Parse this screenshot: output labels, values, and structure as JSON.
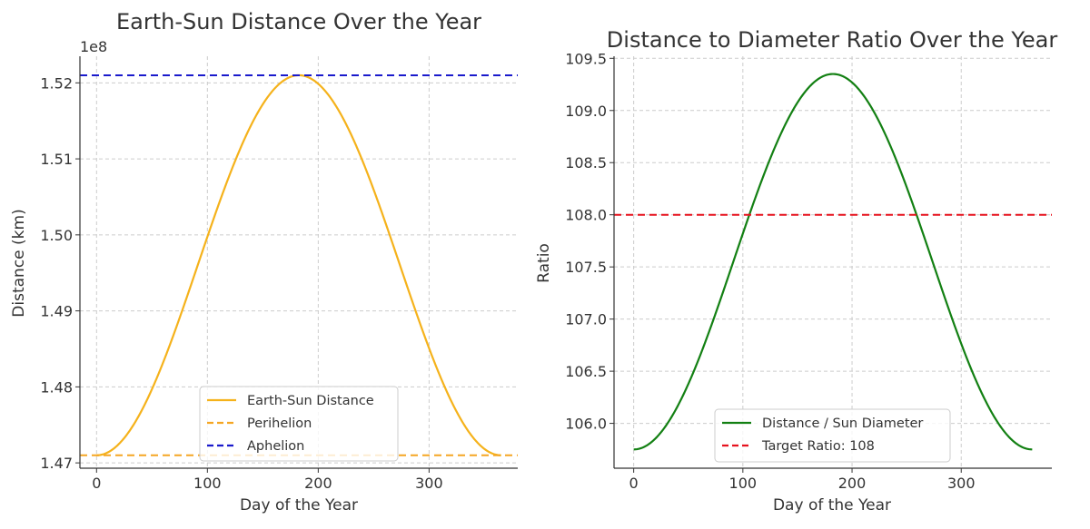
{
  "chart_data": [
    {
      "type": "line",
      "title": "Earth-Sun Distance Over the Year",
      "xlabel": "Day of the Year",
      "ylabel": "Distance (km)",
      "offset_label": "1e8",
      "xlim": [
        -15,
        380
      ],
      "ylim": [
        1.4693,
        1.5235
      ],
      "x_ticks": [
        0,
        100,
        200,
        300
      ],
      "x_tick_labels": [
        "0",
        "100",
        "200",
        "300"
      ],
      "y_ticks": [
        1.47,
        1.48,
        1.49,
        1.5,
        1.51,
        1.52
      ],
      "y_tick_labels": [
        "1.47",
        "1.48",
        "1.49",
        "1.50",
        "1.51",
        "1.52"
      ],
      "grid": true,
      "legend_position": "lower center",
      "series": [
        {
          "name": "Earth-Sun Distance",
          "kind": "cosine",
          "x_range": [
            0,
            365
          ],
          "min_value": 1.471,
          "max_value": 1.521,
          "min_day": 0,
          "color": "#f5b21b",
          "style": "solid"
        },
        {
          "name": "Perihelion",
          "kind": "hline",
          "y": 1.471,
          "color": "#f5a623",
          "style": "dashed"
        },
        {
          "name": "Aphelion",
          "kind": "hline",
          "y": 1.521,
          "color": "#1a1acc",
          "style": "dashed"
        }
      ]
    },
    {
      "type": "line",
      "title": "Distance to Diameter Ratio Over the Year",
      "xlabel": "Day of the Year",
      "ylabel": "Ratio",
      "offset_label": "",
      "xlim": [
        -18,
        383
      ],
      "ylim": [
        105.57,
        109.52
      ],
      "x_ticks": [
        0,
        100,
        200,
        300
      ],
      "x_tick_labels": [
        "0",
        "100",
        "200",
        "300"
      ],
      "y_ticks": [
        106.0,
        106.5,
        107.0,
        107.5,
        108.0,
        108.5,
        109.0,
        109.5
      ],
      "y_tick_labels": [
        "106.0",
        "106.5",
        "107.0",
        "107.5",
        "108.0",
        "108.5",
        "109.0",
        "109.5"
      ],
      "grid": true,
      "legend_position": "lower center",
      "series": [
        {
          "name": "Distance / Sun Diameter",
          "kind": "cosine",
          "x_range": [
            0,
            365
          ],
          "min_value": 105.75,
          "max_value": 109.35,
          "min_day": 0,
          "color": "#138013",
          "style": "solid"
        },
        {
          "name": "Target Ratio: 108",
          "kind": "hline",
          "y": 108,
          "color": "#e6121e",
          "style": "dashed"
        }
      ]
    }
  ]
}
